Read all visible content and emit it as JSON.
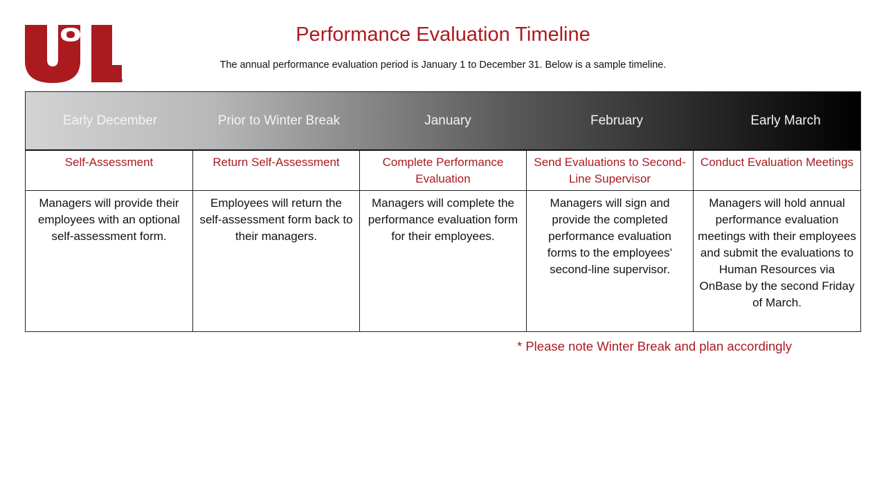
{
  "logo": {
    "text": "UofL",
    "brand_color": "#ab1a1f"
  },
  "title": "Performance Evaluation Timeline",
  "subtitle": "The annual performance evaluation period is January 1 to December 31. Below is a sample timeline.",
  "columns": [
    {
      "period": "Early December",
      "task": "Self-Assessment",
      "description": "Managers will provide their employees with an optional self-assessment form."
    },
    {
      "period": "Prior to Winter Break",
      "task": "Return Self-Assessment",
      "description": "Employees will return the self-assessment form back to their managers."
    },
    {
      "period": "January",
      "task": "Complete Performance Evaluation",
      "description": "Managers will complete the performance evaluation form for their employees."
    },
    {
      "period": "February",
      "task": "Send Evaluations to Second-Line Supervisor",
      "description": "Managers will sign and provide the completed performance evaluation forms to the employees’ second-line supervisor."
    },
    {
      "period": "Early March",
      "task": "Conduct Evaluation Meetings",
      "description": "Managers will hold annual performance evaluation meetings with their employees and submit the evaluations to Human Resources via OnBase by the second Friday of March."
    }
  ],
  "note": "* Please note Winter Break and plan accordingly"
}
